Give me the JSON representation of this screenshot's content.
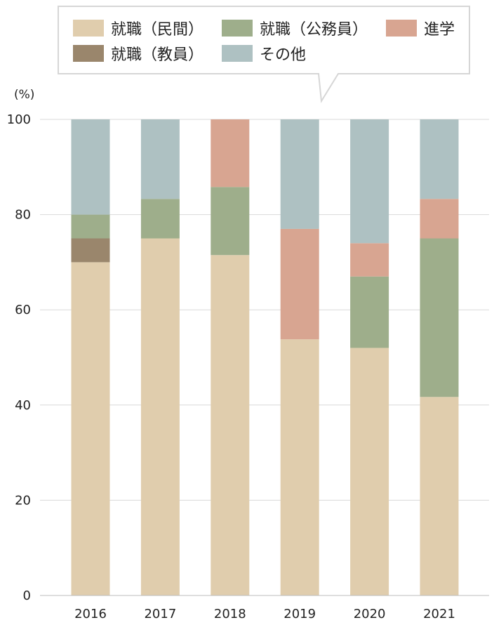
{
  "chart_data": {
    "type": "bar",
    "stacked": true,
    "unit": "(%)",
    "categories": [
      "2016",
      "2017",
      "2018",
      "2019",
      "2020",
      "2021"
    ],
    "ylim": [
      0,
      100
    ],
    "yticks": [
      0,
      20,
      40,
      60,
      80,
      100
    ],
    "grid": true,
    "legend_position": "top",
    "series": [
      {
        "name": "就職（民間）",
        "color": "#e0cdad",
        "values": [
          70,
          75,
          71.5,
          53.8,
          52,
          41.7
        ]
      },
      {
        "name": "就職（教員）",
        "color": "#9a866c",
        "values": [
          5,
          0,
          0,
          0,
          0,
          0
        ]
      },
      {
        "name": "就職（公務員）",
        "color": "#9eae8b",
        "values": [
          5,
          8.3,
          14.3,
          0,
          15,
          33.3
        ]
      },
      {
        "name": "進学",
        "color": "#d8a591",
        "values": [
          0,
          0,
          14.2,
          23.2,
          7,
          8.3
        ]
      },
      {
        "name": "その他",
        "color": "#aec1c2",
        "values": [
          20,
          16.7,
          0,
          23,
          26,
          16.7
        ]
      }
    ]
  },
  "legend_rows": [
    [
      0,
      2,
      3
    ],
    [
      1,
      4
    ]
  ]
}
